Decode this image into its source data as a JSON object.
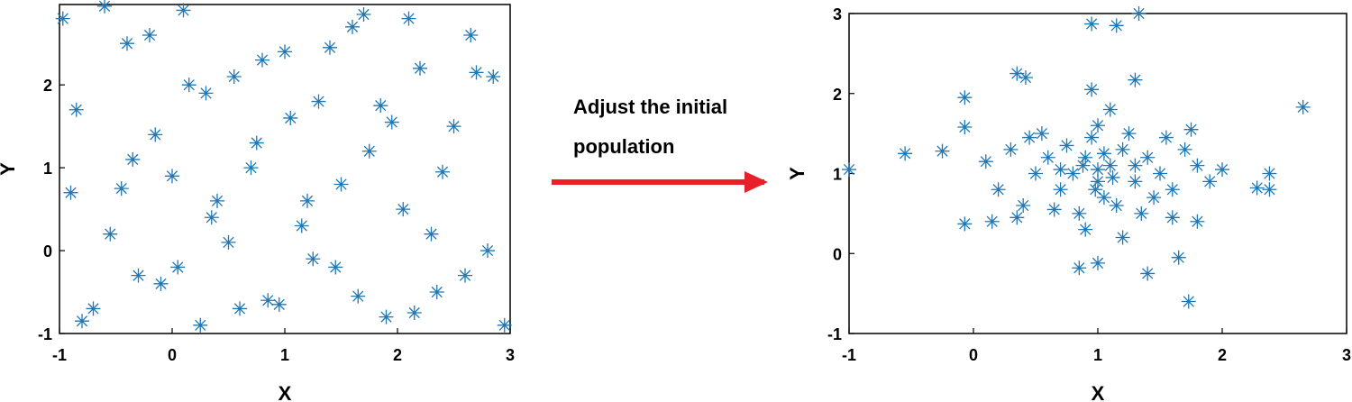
{
  "chart_data": [
    {
      "type": "scatter",
      "color": "#1f77b4",
      "xlabel": "X",
      "ylabel": "Y",
      "xlim": [
        -1,
        3
      ],
      "ylim": [
        -1,
        2.97
      ],
      "xticks": [
        -1,
        0,
        1,
        2,
        3
      ],
      "yticks": [
        -1,
        0,
        1,
        2
      ],
      "x": [
        -0.97,
        -0.85,
        -0.7,
        -0.55,
        -0.4,
        -0.3,
        -0.15,
        0.0,
        0.1,
        0.25,
        0.4,
        0.55,
        0.7,
        0.85,
        1.0,
        1.15,
        1.3,
        1.45,
        1.6,
        1.75,
        1.9,
        2.05,
        2.2,
        2.35,
        2.5,
        2.65,
        2.8,
        2.95,
        -0.9,
        -0.6,
        -0.35,
        -0.1,
        0.15,
        0.35,
        0.6,
        0.8,
        1.05,
        1.25,
        1.5,
        1.7,
        1.95,
        2.15,
        2.4,
        2.6,
        2.85,
        -0.8,
        -0.45,
        -0.2,
        0.05,
        0.3,
        0.5,
        0.75,
        0.95,
        1.2,
        1.4,
        1.65,
        1.85,
        2.1,
        2.3,
        2.7
      ],
      "values": [
        2.8,
        1.7,
        -0.7,
        0.2,
        2.5,
        -0.3,
        1.4,
        0.9,
        2.9,
        -0.9,
        0.6,
        2.1,
        1.0,
        -0.6,
        2.4,
        0.3,
        1.8,
        -0.2,
        2.7,
        1.2,
        -0.8,
        0.5,
        2.2,
        -0.5,
        1.5,
        2.6,
        0.0,
        -0.9,
        0.7,
        2.95,
        1.1,
        -0.4,
        2.0,
        0.4,
        -0.7,
        2.3,
        1.6,
        -0.1,
        0.8,
        2.85,
        1.55,
        -0.75,
        0.95,
        -0.3,
        2.1,
        -0.85,
        0.75,
        2.6,
        -0.2,
        1.9,
        0.1,
        1.3,
        -0.65,
        0.6,
        2.45,
        -0.55,
        1.75,
        2.8,
        0.2,
        2.15
      ]
    },
    {
      "type": "scatter",
      "color": "#1f77b4",
      "xlabel": "X",
      "ylabel": "Y",
      "xlim": [
        -1,
        3
      ],
      "ylim": [
        -1,
        3
      ],
      "xticks": [
        -1,
        0,
        1,
        2,
        3
      ],
      "yticks": [
        -1,
        0,
        1,
        2,
        3
      ],
      "x": [
        -1,
        -0.55,
        -0.25,
        -0.07,
        -0.07,
        -0.07,
        0.35,
        0.42,
        0.95,
        1.15,
        1.33,
        2.65,
        2.28,
        2.38,
        2.38,
        1.73,
        1.4,
        0.85,
        1.0,
        1.3,
        0.95,
        1.65,
        0.8,
        0.9,
        1.0,
        1.1,
        1.2,
        1.05,
        0.7,
        0.6,
        1.3,
        1.4,
        1.5,
        0.95,
        1.15,
        0.75,
        1.25,
        0.5,
        1.6,
        1.7,
        0.4,
        0.3,
        1.8,
        1.9,
        2.0,
        0.2,
        0.1,
        1.0,
        0.85,
        1.35,
        1.55,
        0.65,
        1.1,
        0.9,
        1.2,
        0.55,
        1.45,
        1.0,
        1.12,
        0.88,
        1.3,
        0.7,
        1.6,
        0.35,
        1.8,
        0.15,
        1.75,
        0.45,
        1.05,
        0.98
      ],
      "values": [
        1.05,
        1.25,
        1.28,
        1.95,
        1.58,
        0.37,
        2.25,
        2.2,
        2.87,
        2.85,
        3.0,
        1.83,
        0.82,
        0.8,
        1.0,
        -0.6,
        -0.25,
        -0.18,
        -0.12,
        2.17,
        2.05,
        -0.05,
        1.0,
        1.2,
        0.9,
        1.1,
        1.3,
        0.7,
        0.8,
        1.2,
        0.9,
        1.2,
        1.0,
        1.45,
        0.6,
        1.35,
        1.5,
        1.0,
        0.8,
        1.3,
        0.6,
        1.3,
        1.1,
        0.9,
        1.05,
        0.8,
        1.15,
        1.6,
        0.5,
        0.5,
        1.45,
        0.55,
        1.8,
        0.3,
        0.2,
        1.5,
        0.7,
        1.05,
        0.95,
        1.1,
        1.1,
        1.05,
        0.45,
        0.45,
        0.4,
        0.4,
        1.55,
        1.45,
        1.25,
        0.8
      ]
    }
  ],
  "annotation": {
    "lines": [
      "Adjust the initial",
      "population"
    ]
  }
}
